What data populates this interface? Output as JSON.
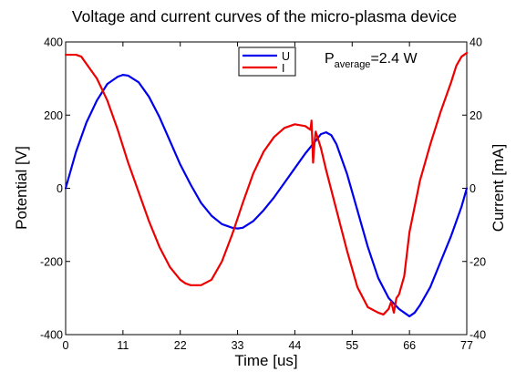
{
  "chart_data": {
    "type": "line",
    "title": "Voltage and current curves of the micro-plasma device",
    "xlabel": "Time [us]",
    "ylabel_left": "Potential [V]",
    "ylabel_right": "Current [mA]",
    "xlim": [
      0,
      77
    ],
    "ylim_left": [
      -400,
      400
    ],
    "ylim_right": [
      -40,
      40
    ],
    "x_ticks": [
      "0",
      "11",
      "22",
      "33",
      "44",
      "55",
      "66",
      "77"
    ],
    "y_ticks_left": [
      "-400",
      "-200",
      "0",
      "200",
      "400"
    ],
    "y_ticks_right": [
      "-40",
      "-20",
      "0",
      "20",
      "40"
    ],
    "grid": false,
    "legend_position": "top-center",
    "annotation": {
      "prefix": "P",
      "subscript": "average",
      "suffix": "=2.4 W"
    },
    "series": [
      {
        "name": "U",
        "axis": "left",
        "color": "#0000ee",
        "x": [
          0,
          2,
          4,
          6,
          8,
          10,
          11,
          12,
          14,
          16,
          18,
          20,
          22,
          24,
          26,
          28,
          30,
          32,
          33,
          34,
          36,
          38,
          40,
          42,
          44,
          46,
          48,
          49,
          50,
          51,
          52,
          54,
          56,
          58,
          60,
          62,
          64,
          65,
          66,
          67,
          68,
          70,
          72,
          74,
          76,
          77
        ],
        "values": [
          0,
          100,
          180,
          240,
          285,
          305,
          310,
          308,
          290,
          250,
          195,
          130,
          65,
          10,
          -40,
          -75,
          -98,
          -108,
          -110,
          -108,
          -90,
          -60,
          -25,
          15,
          55,
          95,
          130,
          148,
          153,
          145,
          120,
          40,
          -60,
          -160,
          -245,
          -300,
          -330,
          -340,
          -350,
          -340,
          -320,
          -270,
          -200,
          -130,
          -50,
          0
        ]
      },
      {
        "name": "I",
        "axis": "right",
        "color": "#ee0000",
        "x": [
          0,
          2,
          3,
          4,
          6,
          8,
          10,
          12,
          14,
          16,
          18,
          20,
          22,
          23,
          24,
          26,
          28,
          30,
          32,
          34,
          36,
          38,
          40,
          42,
          44,
          46,
          47,
          47.2,
          47.5,
          47.8,
          48,
          49,
          50,
          52,
          54,
          56,
          58,
          60,
          61,
          62,
          62.5,
          63,
          63.5,
          64,
          65,
          66,
          68,
          70,
          72,
          74,
          75,
          76,
          77
        ],
        "values": [
          36.5,
          36.5,
          36,
          34,
          30,
          24,
          16,
          7,
          -1,
          -9,
          -16,
          -21.5,
          -25,
          -26,
          -26.5,
          -26.5,
          -25,
          -20,
          -12.5,
          -4,
          4,
          10,
          14,
          16.5,
          17.5,
          17,
          16,
          18.5,
          7,
          13,
          15.5,
          11,
          5,
          -6,
          -17,
          -27,
          -32.5,
          -34,
          -34.5,
          -33,
          -31,
          -34,
          -30,
          -29,
          -24,
          -12,
          2,
          12,
          21,
          29,
          33.5,
          36,
          37
        ]
      }
    ]
  }
}
